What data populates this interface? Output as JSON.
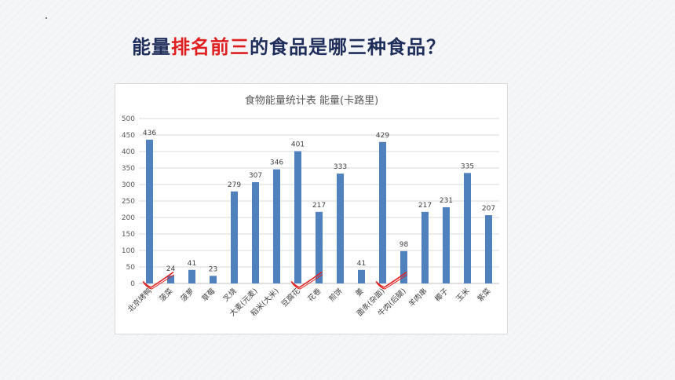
{
  "slide": {
    "question_pre": "能量",
    "question_highlight": "排名前三",
    "question_post": "的食品是哪三种食品？"
  },
  "colors": {
    "bar": "#4f81bd",
    "highlight": "#e02020",
    "tick_mark": "#e02020"
  },
  "chart_data": {
    "type": "bar",
    "title": "食物能量统计表 能量(卡路里)",
    "categories": [
      "北京烤鸭",
      "菠菜",
      "菠萝",
      "草莓",
      "叉烧",
      "大麦(元麦)",
      "稻米(大米)",
      "豆腐花",
      "花卷",
      "煎饼",
      "姜",
      "面条(杂面)",
      "牛肉(后腿)",
      "羊肉串",
      "椰子",
      "玉米",
      "紫菜"
    ],
    "values": [
      436,
      24,
      41,
      23,
      279,
      307,
      346,
      401,
      217,
      333,
      41,
      429,
      98,
      217,
      231,
      335,
      207
    ],
    "ylim": [
      0,
      500
    ],
    "yticks": [
      0,
      50,
      100,
      150,
      200,
      250,
      300,
      350,
      400,
      450,
      500
    ],
    "grid": true,
    "xlabel": "",
    "ylabel": "",
    "checkmarks_under": [
      "北京烤鸭",
      "豆腐花",
      "面条(杂面)"
    ]
  }
}
